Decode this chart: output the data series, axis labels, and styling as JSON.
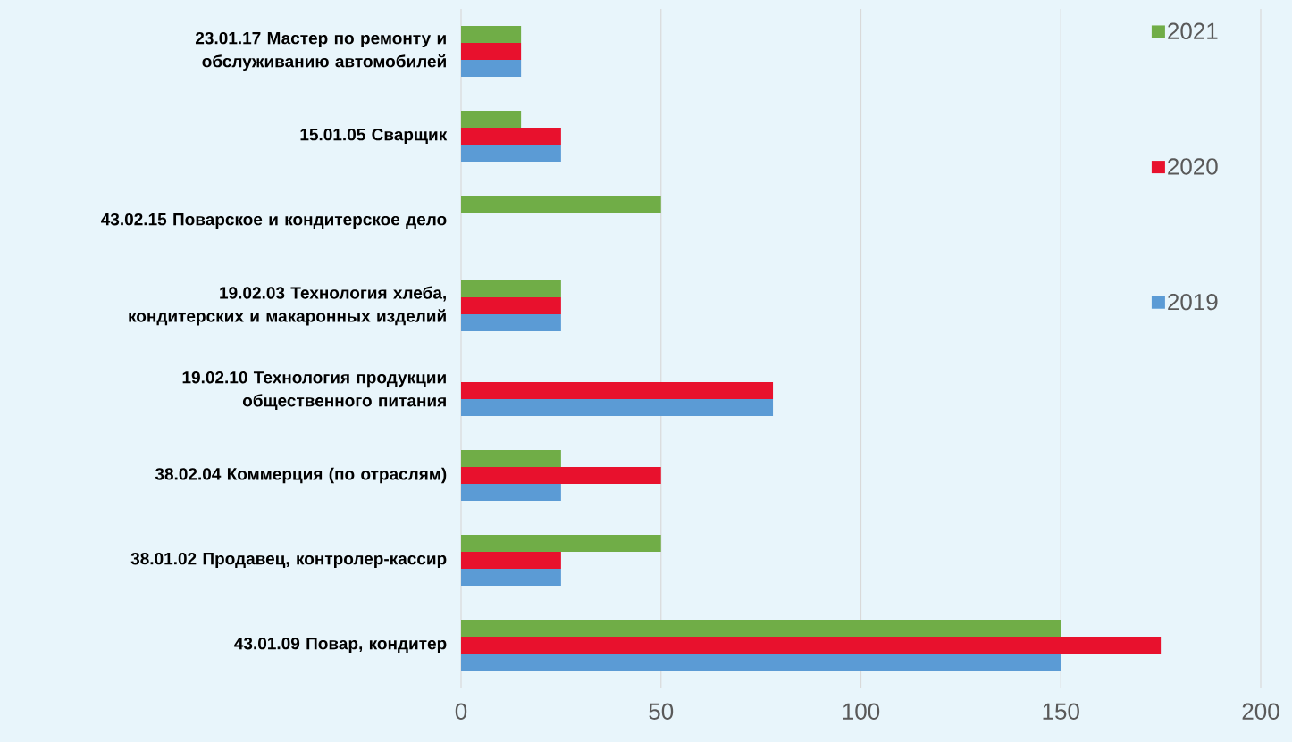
{
  "chart_data": {
    "type": "bar",
    "orientation": "horizontal",
    "categories": [
      "23.01.17 Мастер по ремонту и обслуживанию автомобилей",
      "15.01.05 Сварщик",
      "43.02.15 Поварское и кондитерское дело",
      "19.02.03 Технология хлеба, кондитерских и макаронных изделий",
      "19.02.10 Технология продукции общественного питания",
      "38.02.04 Коммерция (по отраслям)",
      "38.01.02 Продавец, контролер-кассир",
      "43.01.09 Повар, кондитер"
    ],
    "series": [
      {
        "name": "2019",
        "color": "#5b9bd5",
        "values": [
          15,
          25,
          null,
          25,
          78,
          25,
          25,
          150
        ]
      },
      {
        "name": "2020",
        "color": "#e8112d",
        "values": [
          15,
          25,
          null,
          25,
          78,
          50,
          25,
          175
        ]
      },
      {
        "name": "2021",
        "color": "#70ad47",
        "values": [
          15,
          15,
          50,
          25,
          null,
          25,
          50,
          150
        ]
      }
    ],
    "xlim": [
      0,
      200
    ],
    "xticks": [
      0,
      50,
      100,
      150,
      200
    ],
    "grid": "x",
    "legend": "right"
  }
}
